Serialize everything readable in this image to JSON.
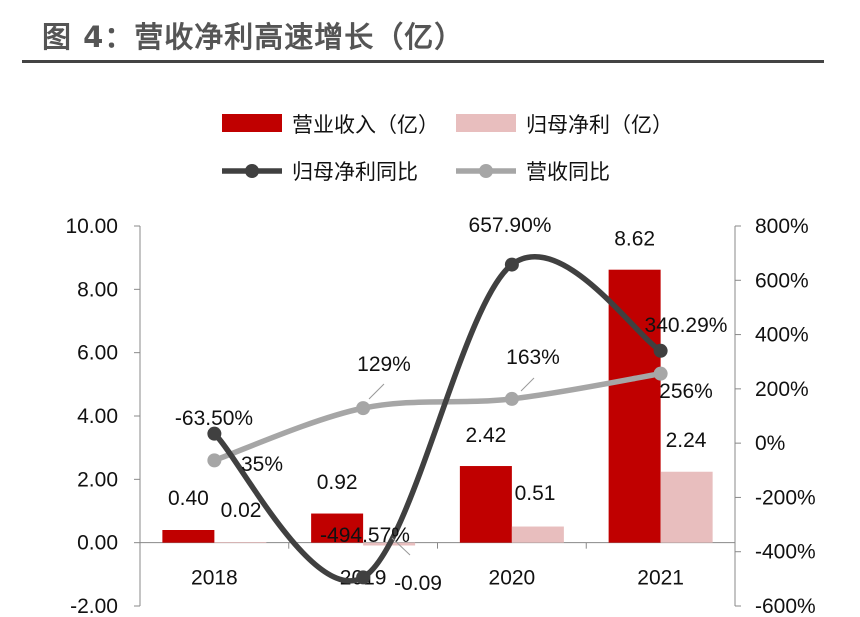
{
  "page": {
    "title": "图 4：营收净利高速增长（亿）"
  },
  "chart_data": {
    "type": "bar",
    "categories": [
      "2018",
      "2019",
      "2020",
      "2021"
    ],
    "series": [
      {
        "name": "营业收入（亿）",
        "kind": "bar",
        "axis": "left",
        "color": "#c00000",
        "values": [
          0.4,
          0.92,
          2.42,
          8.62
        ],
        "labels": [
          "0.40",
          "0.92",
          "2.42",
          "8.62"
        ]
      },
      {
        "name": "归母净利（亿）",
        "kind": "bar",
        "axis": "left",
        "color": "#e8bebe",
        "values": [
          0.02,
          -0.09,
          0.51,
          2.24
        ],
        "labels": [
          "0.02",
          "-0.09",
          "0.51",
          "2.24"
        ]
      },
      {
        "name": "归母净利同比",
        "kind": "line",
        "axis": "right",
        "color": "#404040",
        "values": [
          35,
          -494.57,
          657.9,
          340.29
        ],
        "labels": [
          "35%",
          "-494.57%",
          "657.90%",
          "340.29%"
        ]
      },
      {
        "name": "营收同比",
        "kind": "line",
        "axis": "right",
        "color": "#a6a6a6",
        "values": [
          -63.5,
          129,
          163,
          256
        ],
        "labels": [
          "-63.50%",
          "129%",
          "163%",
          "256%"
        ]
      }
    ],
    "y_left": {
      "lim": [
        -2,
        10
      ],
      "ticks": [
        "-2.00",
        "0.00",
        "2.00",
        "4.00",
        "6.00",
        "8.00",
        "10.00"
      ]
    },
    "y_right": {
      "lim": [
        -600,
        800
      ],
      "ticks": [
        "-600%",
        "-400%",
        "-200%",
        "0%",
        "200%",
        "400%",
        "600%",
        "800%"
      ]
    },
    "legend_position": "top",
    "grid": false
  }
}
